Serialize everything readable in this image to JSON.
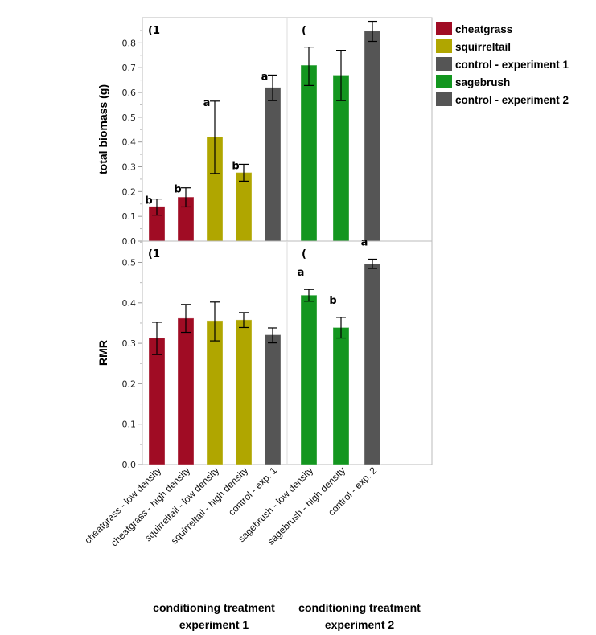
{
  "chart_data": [
    {
      "type": "bar",
      "panel": "top",
      "panel_labels": [
        "(1",
        "("
      ],
      "ylabel": "total biomass (g)",
      "ylim": [
        0,
        0.88
      ],
      "yticks": [
        "0.0",
        "0.1",
        "0.2",
        "0.3",
        "0.4",
        "0.5",
        "0.6",
        "0.7",
        "0.8"
      ],
      "categories": [
        "cheatgrass - low density",
        "cheatgrass - high density",
        "squirreltail - low density",
        "squirreltail - high density",
        "control - exp. 1",
        "sagebrush - low density",
        "sagebrush - high density",
        "control - exp. 2"
      ],
      "values": [
        0.14,
        0.178,
        0.42,
        0.277,
        0.62,
        0.71,
        0.67,
        0.848
      ],
      "err_low": [
        0.105,
        0.138,
        0.273,
        0.242,
        0.567,
        0.628,
        0.567,
        0.806
      ],
      "err_high": [
        0.17,
        0.215,
        0.565,
        0.31,
        0.67,
        0.783,
        0.77,
        0.887
      ],
      "letters": [
        "b",
        "b",
        "a",
        "b",
        "a",
        "",
        "",
        ""
      ]
    },
    {
      "type": "bar",
      "panel": "bottom",
      "panel_labels": [
        "(1",
        "("
      ],
      "ylabel": "RMR",
      "ylim": [
        0,
        0.55
      ],
      "yticks": [
        "0.0",
        "0.1",
        "0.2",
        "0.3",
        "0.4",
        "0.5"
      ],
      "categories": [
        "cheatgrass - low density",
        "cheatgrass - high density",
        "squirreltail - low density",
        "squirreltail - high density",
        "control - exp. 1",
        "sagebrush - low density",
        "sagebrush - high density",
        "control - exp. 2"
      ],
      "values": [
        0.313,
        0.362,
        0.356,
        0.358,
        0.321,
        0.419,
        0.339,
        0.497
      ],
      "err_low": [
        0.272,
        0.327,
        0.306,
        0.339,
        0.301,
        0.404,
        0.313,
        0.485
      ],
      "err_high": [
        0.352,
        0.396,
        0.402,
        0.376,
        0.338,
        0.433,
        0.364,
        0.508
      ],
      "letters": [
        "",
        "",
        "",
        "",
        "",
        "a",
        "b",
        "a"
      ]
    }
  ],
  "bar_groups": [
    "cheatgrass",
    "cheatgrass",
    "squirreltail",
    "squirreltail",
    "control1",
    "sagebrush",
    "sagebrush",
    "control2"
  ],
  "legend": [
    {
      "label": "cheatgrass",
      "color": "#a00c24"
    },
    {
      "label": "squirreltail",
      "color": "#b0a600"
    },
    {
      "label": "control - experiment 1",
      "color": "#555555"
    },
    {
      "label": "sagebrush",
      "color": "#13961f"
    },
    {
      "label": "control - experiment 2",
      "color": "#555555"
    }
  ],
  "colors": {
    "cheatgrass": "#a00c24",
    "squirreltail": "#b0a600",
    "control1": "#555555",
    "sagebrush": "#13961f",
    "control2": "#555555"
  },
  "x_groups": [
    {
      "line1": "conditioning treatment",
      "line2": "experiment 1"
    },
    {
      "line1": "conditioning treatment",
      "line2": "experiment 2"
    }
  ]
}
